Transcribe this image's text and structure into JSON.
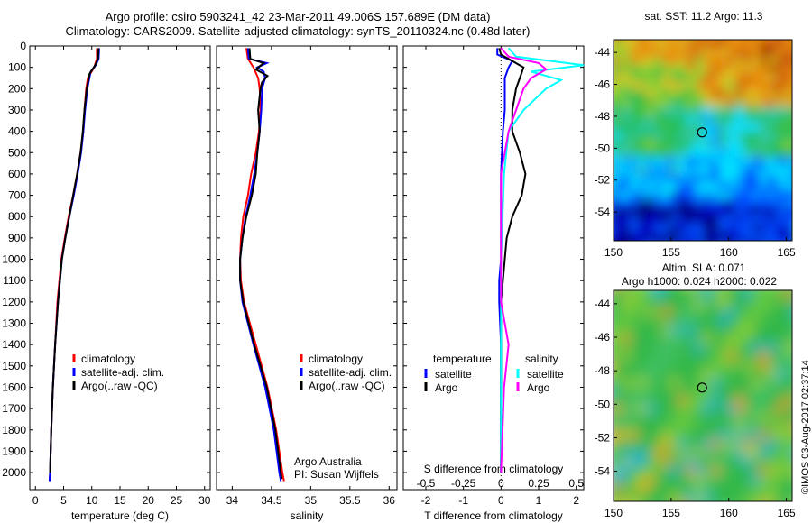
{
  "title_line1": "Argo profile: csiro 5903241_42 23-Mar-2011 49.006S 157.689E (DM data)",
  "title_line2": "Climatology: CARS2009. Satellite-adjusted climatology: synTS_20110324.nc (0.48d later)",
  "stamp": "©IMOS 03-Aug-2017 02:37:14",
  "chart_data": [
    {
      "type": "line",
      "panel": "temperature",
      "xlabel": "temperature (deg C)",
      "ylabel": "",
      "xlim": [
        -1,
        31
      ],
      "ylim": [
        2080,
        0
      ],
      "xticks": [
        0,
        5,
        10,
        15,
        20,
        25,
        30
      ],
      "yticks": [
        0,
        100,
        200,
        300,
        400,
        500,
        600,
        700,
        800,
        900,
        1000,
        1100,
        1200,
        1300,
        1400,
        1500,
        1600,
        1700,
        1800,
        1900,
        2000
      ],
      "legend": [
        "climatology",
        "satellite-adj. clim.",
        "Argo(..raw -QC)"
      ],
      "colors": [
        "#ff0000",
        "#0000ff",
        "#000000"
      ],
      "series": [
        {
          "name": "climatology",
          "depth": [
            10,
            60,
            100,
            150,
            200,
            300,
            400,
            500,
            600,
            700,
            800,
            900,
            1000,
            1200,
            1400,
            1600,
            1800,
            2000,
            2040
          ],
          "values": [
            10.9,
            10.9,
            10.4,
            9.3,
            9.0,
            8.7,
            8.5,
            8.0,
            7.4,
            6.7,
            5.9,
            5.2,
            4.6,
            3.9,
            3.5,
            3.1,
            2.8,
            2.6,
            2.5
          ]
        },
        {
          "name": "satellite-adj. clim.",
          "depth": [
            10,
            60,
            90,
            120,
            200,
            300,
            400,
            500,
            600,
            700,
            800,
            900,
            1000,
            1200,
            1400,
            1600,
            1800,
            2000,
            2040
          ],
          "values": [
            11.3,
            11.2,
            10.7,
            9.8,
            9.2,
            8.8,
            8.5,
            8.1,
            7.5,
            6.8,
            6.0,
            5.3,
            4.7,
            4.0,
            3.5,
            3.1,
            2.8,
            2.6,
            2.5
          ]
        },
        {
          "name": "Argo(..raw -QC)",
          "depth": [
            10,
            60,
            90,
            130,
            200,
            300,
            400,
            500,
            600,
            700,
            800,
            900,
            1000,
            1200,
            1400,
            1600,
            1800,
            2000
          ],
          "values": [
            11.2,
            11.1,
            10.6,
            9.6,
            9.1,
            8.7,
            8.4,
            8.0,
            7.4,
            6.7,
            6.0,
            5.3,
            4.7,
            4.0,
            3.5,
            3.1,
            2.8,
            2.6
          ]
        }
      ]
    },
    {
      "type": "line",
      "panel": "salinity",
      "xlabel": "salinity",
      "ylabel": "",
      "xlim": [
        33.8,
        36.1
      ],
      "ylim": [
        2080,
        0
      ],
      "xticks": [
        34,
        34.5,
        35,
        35.5,
        36
      ],
      "legend": [
        "climatology",
        "satellite-adj. clim.",
        "Argo(..raw -QC)"
      ],
      "annotation": [
        "Argo Australia",
        "PI: Susan Wijffels"
      ],
      "colors": [
        "#ff0000",
        "#0000ff",
        "#000000"
      ],
      "series": [
        {
          "name": "climatology",
          "depth": [
            10,
            60,
            100,
            150,
            200,
            300,
            400,
            500,
            600,
            700,
            800,
            900,
            1000,
            1100,
            1200,
            1400,
            1600,
            1800,
            2000,
            2040
          ],
          "values": [
            34.18,
            34.2,
            34.27,
            34.33,
            34.35,
            34.36,
            34.34,
            34.3,
            34.24,
            34.2,
            34.14,
            34.11,
            34.1,
            34.11,
            34.15,
            34.3,
            34.45,
            34.56,
            34.64,
            34.66
          ]
        },
        {
          "name": "satellite-adj. clim.",
          "depth": [
            10,
            60,
            80,
            100,
            120,
            150,
            200,
            300,
            400,
            500,
            600,
            700,
            800,
            900,
            1000,
            1100,
            1200,
            1400,
            1600,
            1800,
            2000,
            2040
          ],
          "values": [
            34.2,
            34.21,
            34.44,
            34.32,
            34.4,
            34.42,
            34.38,
            34.37,
            34.35,
            34.32,
            34.28,
            34.23,
            34.17,
            34.13,
            34.1,
            34.1,
            34.13,
            34.27,
            34.42,
            34.53,
            34.6,
            34.62
          ]
        },
        {
          "name": "Argo(..raw -QC)",
          "depth": [
            10,
            60,
            80,
            110,
            140,
            170,
            200,
            300,
            400,
            500,
            600,
            700,
            800,
            900,
            1000,
            1100,
            1200,
            1400,
            1600,
            1800,
            2000,
            2030
          ],
          "values": [
            34.22,
            34.23,
            34.4,
            34.3,
            34.45,
            34.38,
            34.36,
            34.33,
            34.35,
            34.32,
            34.3,
            34.25,
            34.18,
            34.13,
            34.1,
            34.1,
            34.14,
            34.28,
            34.44,
            34.55,
            34.62,
            34.63
          ]
        }
      ]
    },
    {
      "type": "line",
      "panel": "difference",
      "xlabel": "T difference from climatology",
      "xlabel_top": "S difference from climatology",
      "xlim": [
        -2.6,
        2.2
      ],
      "ylim": [
        2080,
        0
      ],
      "xticks": [
        -2,
        -1,
        0,
        1,
        2
      ],
      "xticks_s": [
        -0.5,
        -0.25,
        0,
        0.25,
        0.5
      ],
      "legend_headers": [
        "temperature",
        "salinity"
      ],
      "legend": [
        "satellite",
        "Argo",
        "satellite",
        "Argo"
      ],
      "colors": [
        "#0000ff",
        "#000000",
        "#00ffff",
        "#ff00ff"
      ],
      "series": [
        {
          "name": "satellite",
          "group": "temperature",
          "depth": [
            10,
            40,
            70,
            100,
            150,
            200,
            300,
            400,
            600,
            800,
            1000,
            1100,
            1200,
            1400,
            2000
          ],
          "values": [
            -0.1,
            -0.1,
            0.3,
            0.2,
            0.1,
            0.1,
            0.1,
            0.05,
            0.0,
            0.0,
            0.0,
            -0.05,
            -0.05,
            0.0,
            0.0
          ]
        },
        {
          "name": "Argo",
          "group": "temperature",
          "depth": [
            10,
            40,
            70,
            100,
            150,
            200,
            300,
            400,
            500,
            600,
            650,
            700,
            800,
            900,
            1000,
            1100,
            1200,
            1500,
            2000
          ],
          "values": [
            -0.05,
            0.0,
            0.3,
            0.6,
            0.5,
            0.4,
            0.3,
            0.3,
            0.5,
            0.65,
            0.6,
            0.55,
            0.3,
            0.15,
            0.1,
            0.05,
            0.0,
            0.0,
            0.0
          ]
        },
        {
          "name": "satellite",
          "group": "salinity",
          "depth": [
            10,
            50,
            90,
            120,
            160,
            200,
            300,
            400,
            600,
            800,
            1000,
            1200,
            1400,
            1600,
            2000
          ],
          "values": [
            0.05,
            0.1,
            0.55,
            0.2,
            0.4,
            0.3,
            0.15,
            0.05,
            0.02,
            0.01,
            0.0,
            0.0,
            0.0,
            0.0,
            0.0
          ]
        },
        {
          "name": "Argo",
          "group": "salinity",
          "depth": [
            10,
            50,
            80,
            110,
            150,
            200,
            300,
            400,
            600,
            800,
            1000,
            1200,
            1400,
            1600,
            2000
          ],
          "values": [
            0.0,
            0.05,
            0.25,
            0.3,
            0.2,
            0.15,
            0.1,
            0.05,
            0.0,
            0.0,
            0.0,
            0.0,
            0.05,
            0.02,
            0.0
          ]
        }
      ]
    },
    {
      "type": "heatmap",
      "panel": "sst-map",
      "title": "sat. SST: 11.2 Argo: 11.3",
      "xlim": [
        150,
        165.5
      ],
      "ylim": [
        -55.8,
        -43.2
      ],
      "xticks": [
        150,
        155,
        160,
        165
      ],
      "yticks": [
        -44,
        -46,
        -48,
        -50,
        -52,
        -54
      ],
      "marker": {
        "lon": 157.689,
        "lat": -49.006
      }
    },
    {
      "type": "heatmap",
      "panel": "sla-map",
      "title_line1": "Altim. SLA: 0.071",
      "title_line2": "Argo h1000: 0.024 h2000: 0.022",
      "xlim": [
        150,
        165.5
      ],
      "ylim": [
        -55.8,
        -43.2
      ],
      "xticks": [
        150,
        155,
        160,
        165
      ],
      "yticks": [
        -44,
        -46,
        -48,
        -50,
        -52,
        -54
      ],
      "marker": {
        "lon": 157.689,
        "lat": -49.006
      }
    }
  ]
}
